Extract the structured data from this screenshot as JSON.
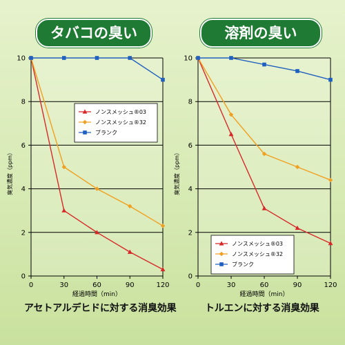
{
  "chart_data": [
    {
      "type": "line",
      "badge": "タバコの臭い",
      "caption": "アセトアルデヒドに対する消臭効果",
      "xlabel": "経過時間（min）",
      "ylabel": "臭気濃度（ppm）",
      "x": [
        0,
        30,
        60,
        90,
        120
      ],
      "xlim": [
        0,
        120
      ],
      "ylim": [
        0,
        10
      ],
      "yticks": [
        0,
        2,
        4,
        6,
        8,
        10
      ],
      "grid": true,
      "legend_position": "upper-right",
      "series": [
        {
          "name": "ノンスメッシュ®03",
          "color": "#d62828",
          "marker": "triangle",
          "values": [
            10,
            3.0,
            2.0,
            1.1,
            0.3
          ]
        },
        {
          "name": "ノンスメッシュ®32",
          "color": "#f0a020",
          "marker": "diamond",
          "values": [
            10,
            5.0,
            4.0,
            3.2,
            2.3
          ]
        },
        {
          "name": "ブランク",
          "color": "#1f5fbf",
          "marker": "square",
          "values": [
            10,
            10,
            10,
            10,
            9.0
          ]
        }
      ]
    },
    {
      "type": "line",
      "badge": "溶剤の臭い",
      "caption": "トルエンに対する消臭効果",
      "xlabel": "経過時間（min）",
      "ylabel": "臭気濃度（ppm）",
      "x": [
        0,
        30,
        60,
        90,
        120
      ],
      "xlim": [
        0,
        120
      ],
      "ylim": [
        0,
        10
      ],
      "yticks": [
        0,
        2,
        4,
        6,
        8,
        10
      ],
      "grid": true,
      "legend_position": "lower-left",
      "series": [
        {
          "name": "ノンスメッシュ®03",
          "color": "#d62828",
          "marker": "triangle",
          "values": [
            10,
            6.5,
            3.1,
            2.2,
            1.5
          ]
        },
        {
          "name": "ノンスメッシュ®32",
          "color": "#f0a020",
          "marker": "diamond",
          "values": [
            10,
            7.4,
            5.6,
            5.0,
            4.4
          ]
        },
        {
          "name": "ブランク",
          "color": "#1f5fbf",
          "marker": "square",
          "values": [
            10,
            10,
            9.7,
            9.4,
            9.0
          ]
        }
      ]
    }
  ]
}
